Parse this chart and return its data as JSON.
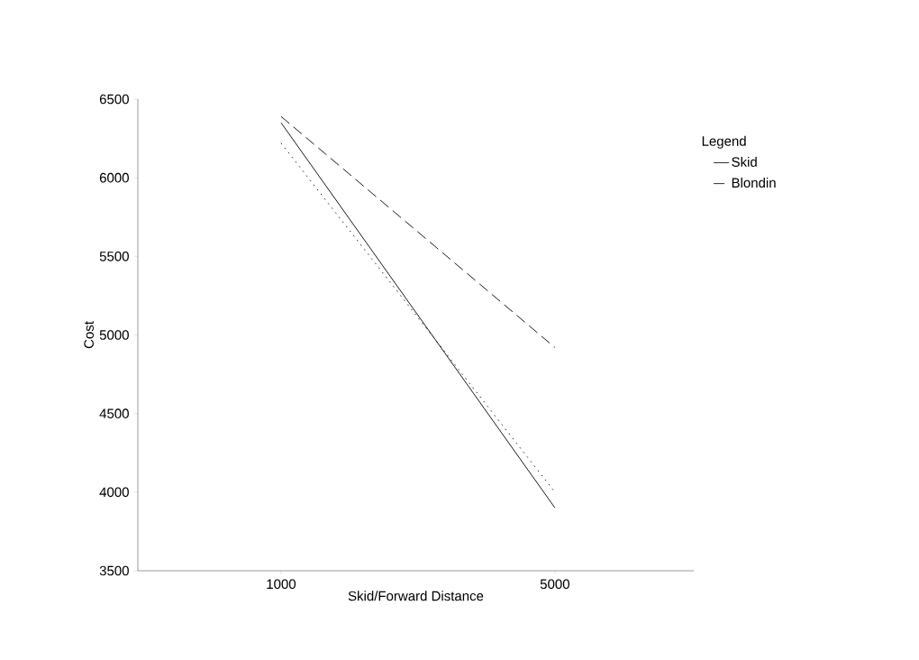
{
  "chart_data": {
    "type": "line",
    "xlabel": "Skid/Forward Distance",
    "ylabel": "Cost",
    "legend_title": "Legend",
    "categories": [
      "1000",
      "5000"
    ],
    "ylim": [
      3500,
      6500
    ],
    "yticks": [
      3500,
      4000,
      4500,
      5000,
      5500,
      6000,
      6500
    ],
    "legend": "right",
    "grid": false,
    "marker": "none",
    "series": [
      {
        "name": "Skid",
        "color": "#000000",
        "line_style": "solid",
        "values": [
          6350,
          3900
        ]
      },
      {
        "name": "Blondin",
        "color": "#000000",
        "line_style": "dashed",
        "values": [
          6390,
          4920
        ]
      },
      {
        "color": "#000000",
        "line_style": "dotted",
        "values": [
          6220,
          4000
        ]
      }
    ]
  }
}
